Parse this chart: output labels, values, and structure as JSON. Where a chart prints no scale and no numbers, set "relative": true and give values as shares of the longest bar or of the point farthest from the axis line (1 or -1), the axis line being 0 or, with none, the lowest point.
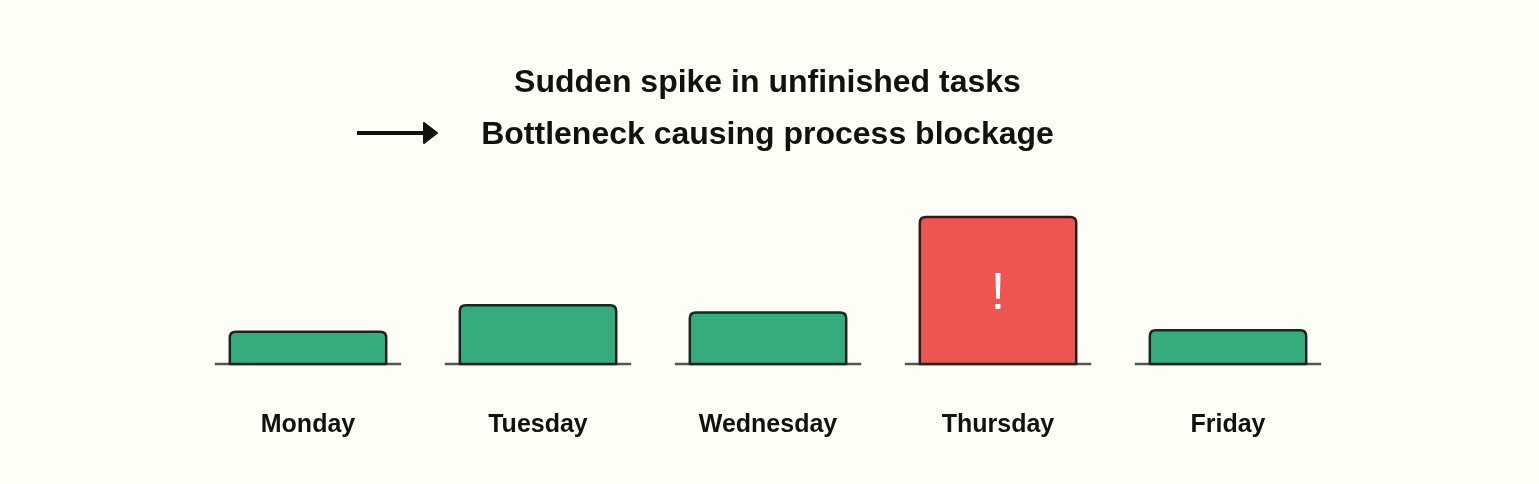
{
  "chart_data": {
    "type": "bar",
    "title": "Sudden spike in unfinished tasks",
    "subtitle": "Bottleneck causing process blockage",
    "categories": [
      "Monday",
      "Tuesday",
      "Wednesday",
      "Thursday",
      "Friday"
    ],
    "values": [
      0.22,
      0.4,
      0.35,
      1,
      0.23
    ],
    "colors": [
      "#36ab7c",
      "#36ab7c",
      "#36ab7c",
      "#ee5451",
      "#36ab7c"
    ],
    "relative": true,
    "annotations": [
      "!"
    ]
  }
}
